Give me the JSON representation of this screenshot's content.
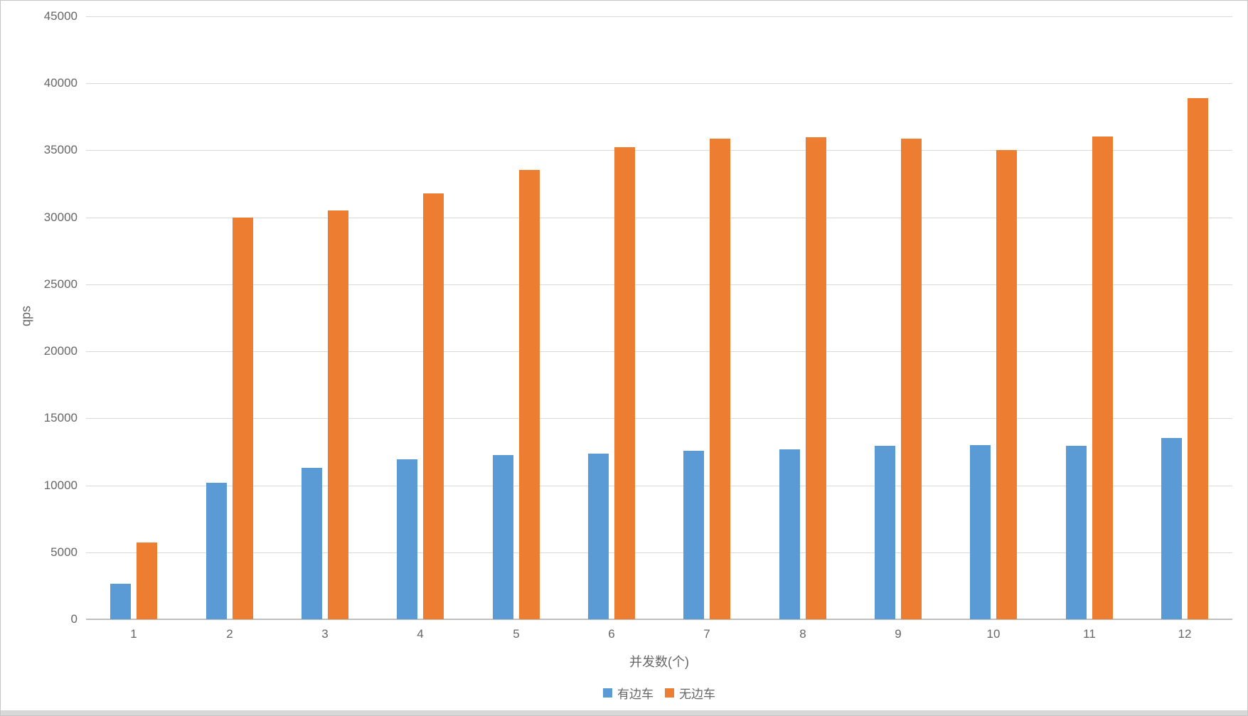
{
  "chart_data": {
    "type": "bar",
    "title": "",
    "xlabel": "并发数(个)",
    "ylabel": "qps",
    "categories": [
      "1",
      "2",
      "3",
      "4",
      "5",
      "6",
      "7",
      "8",
      "9",
      "10",
      "11",
      "12"
    ],
    "series": [
      {
        "name": "有边车",
        "color": "#5b9bd5",
        "values": [
          2650,
          10200,
          11300,
          11950,
          12250,
          12350,
          12600,
          12700,
          12950,
          13000,
          12950,
          13550
        ]
      },
      {
        "name": "无边车",
        "color": "#ed7d31",
        "values": [
          5720,
          30000,
          30500,
          31800,
          33550,
          35250,
          35850,
          36000,
          35850,
          35000,
          36050,
          38900
        ]
      }
    ],
    "ylim": [
      0,
      45000
    ],
    "ytick_step": 5000,
    "ytick_labels": [
      "0",
      "5000",
      "10000",
      "15000",
      "20000",
      "25000",
      "30000",
      "35000",
      "40000",
      "45000"
    ],
    "grid": true,
    "legend_position": "bottom",
    "colors": {
      "gridline": "#d9d9d9",
      "axis_line": "#bfbfbf",
      "text": "#666666",
      "bottom_strip": "#d8d8d8"
    }
  }
}
